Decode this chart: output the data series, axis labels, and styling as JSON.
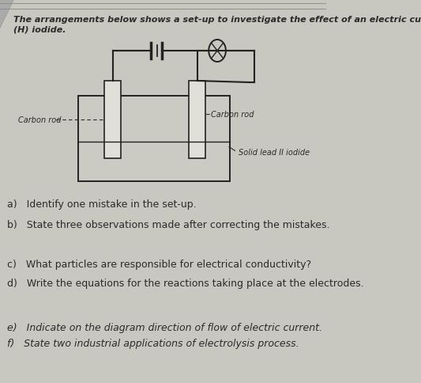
{
  "bg_color": "#c8c8c0",
  "text_color": "#2a2a2a",
  "title_line1": "The arrangements below shows a set-up to investigate the effect of an electric cu",
  "title_line2": "(H) iodide.",
  "q_a": "a)   Identify one mistake in the set-up.",
  "q_b": "b)   State three observations made after correcting the mistakes.",
  "q_c": "c)   What particles are responsible for electrical conductivity?",
  "q_d": "d)   Write the equations for the reactions taking place at the electrodes.",
  "q_e": "e)   Indicate on the diagram direction of flow of electric current.",
  "q_f": "f)   State two industrial applications of electrolysis process.",
  "label_carbon_left": "Carbon rod",
  "label_carbon_right": "Carbon rod",
  "label_solid": "Solid lead II iodide",
  "diagram_bg": "#d4d4cc",
  "wire_color": "#222222",
  "electrode_face": "#e0e0d8",
  "beaker_fill": "#ccccc4"
}
